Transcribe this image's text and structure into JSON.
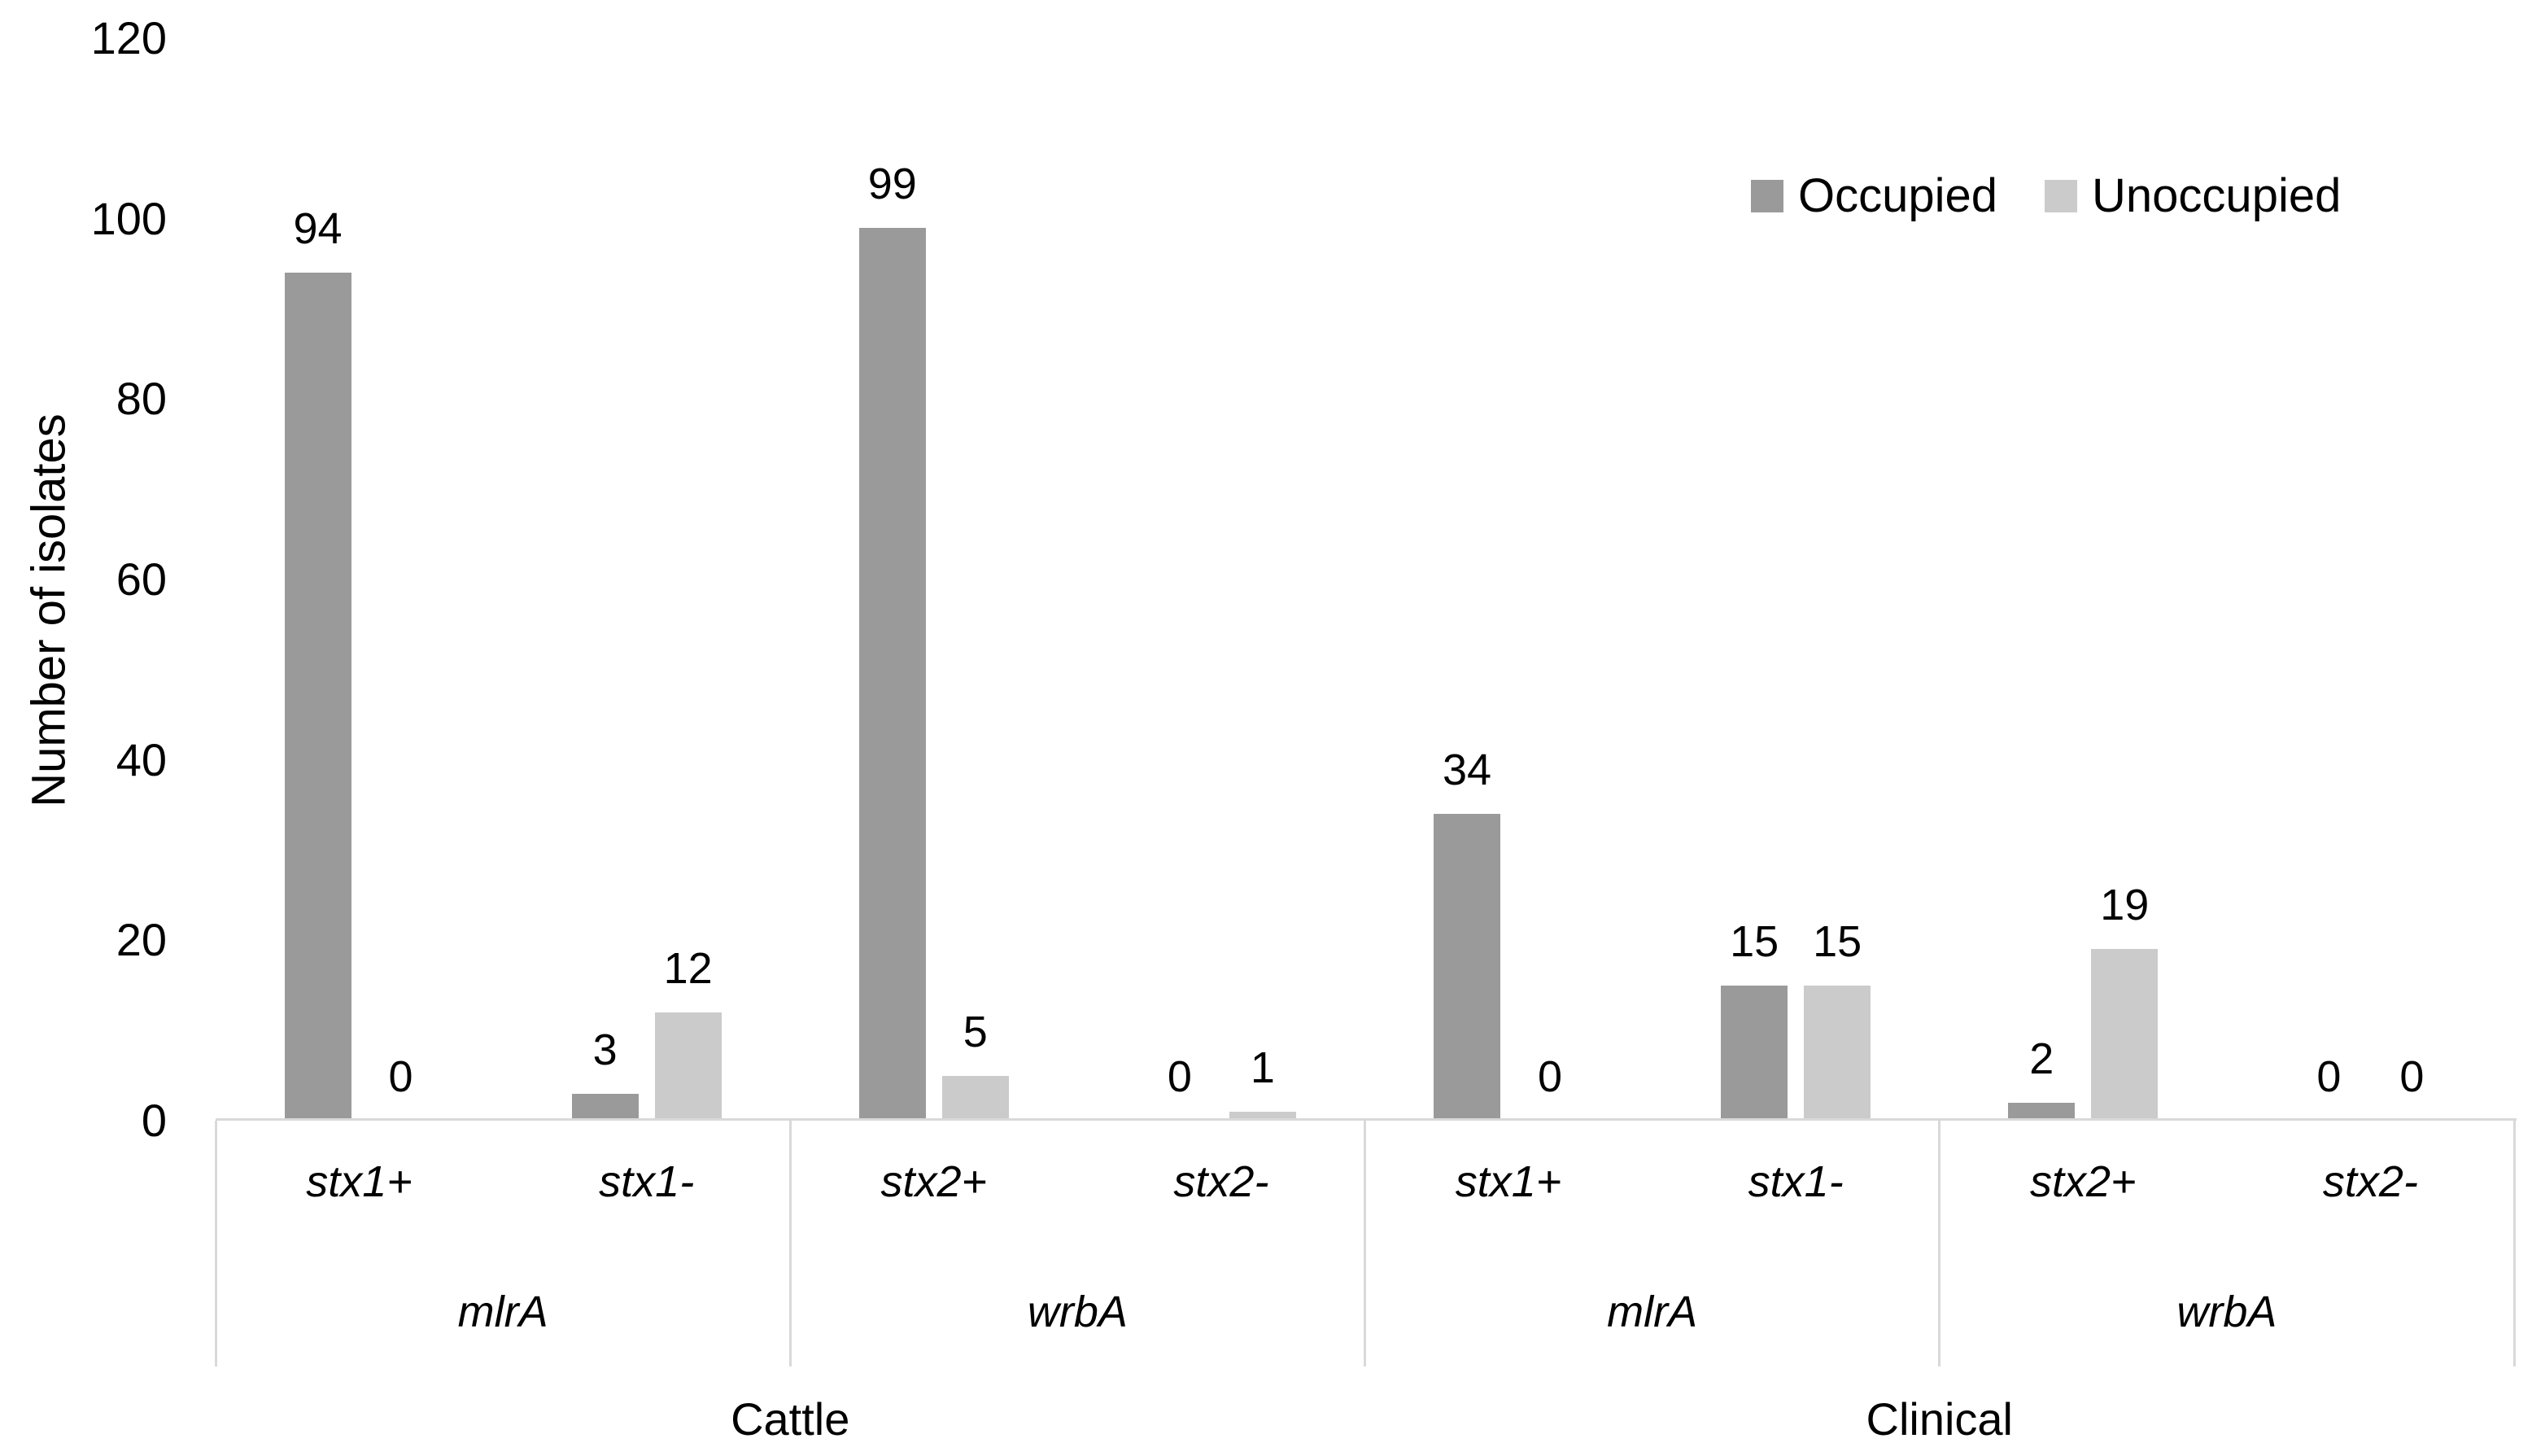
{
  "chart_data": {
    "type": "bar",
    "title": "",
    "ylabel": "Number of isolates",
    "xlabel": "",
    "ylim": [
      0,
      120
    ],
    "yticks": [
      0,
      20,
      40,
      60,
      80,
      100,
      120
    ],
    "grid": false,
    "data_labels": true,
    "legend_position": "top-right",
    "categories": [
      "stx1+",
      "stx1-",
      "stx2+",
      "stx2-",
      "stx1+",
      "stx1-",
      "stx2+",
      "stx2-"
    ],
    "gene_groups": [
      {
        "label": "mlrA",
        "span": [
          0,
          1
        ],
        "parent": "Cattle"
      },
      {
        "label": "wrbA",
        "span": [
          2,
          3
        ],
        "parent": "Cattle"
      },
      {
        "label": "mlrA",
        "span": [
          4,
          5
        ],
        "parent": "Clinical"
      },
      {
        "label": "wrbA",
        "span": [
          6,
          7
        ],
        "parent": "Clinical"
      }
    ],
    "top_groups": [
      {
        "label": "Cattle",
        "span": [
          0,
          3
        ]
      },
      {
        "label": "Clinical",
        "span": [
          4,
          7
        ]
      }
    ],
    "series": [
      {
        "name": "Occupied",
        "color": "#9A9A9A",
        "values": [
          94,
          3,
          99,
          0,
          34,
          15,
          2,
          0
        ]
      },
      {
        "name": "Unoccupied",
        "color": "#CBCBCB",
        "values": [
          0,
          12,
          5,
          1,
          0,
          15,
          19,
          0
        ]
      }
    ],
    "colors": {
      "axis_line": "#D9D9D9",
      "text": "#000000",
      "background": "#FFFFFF"
    }
  }
}
